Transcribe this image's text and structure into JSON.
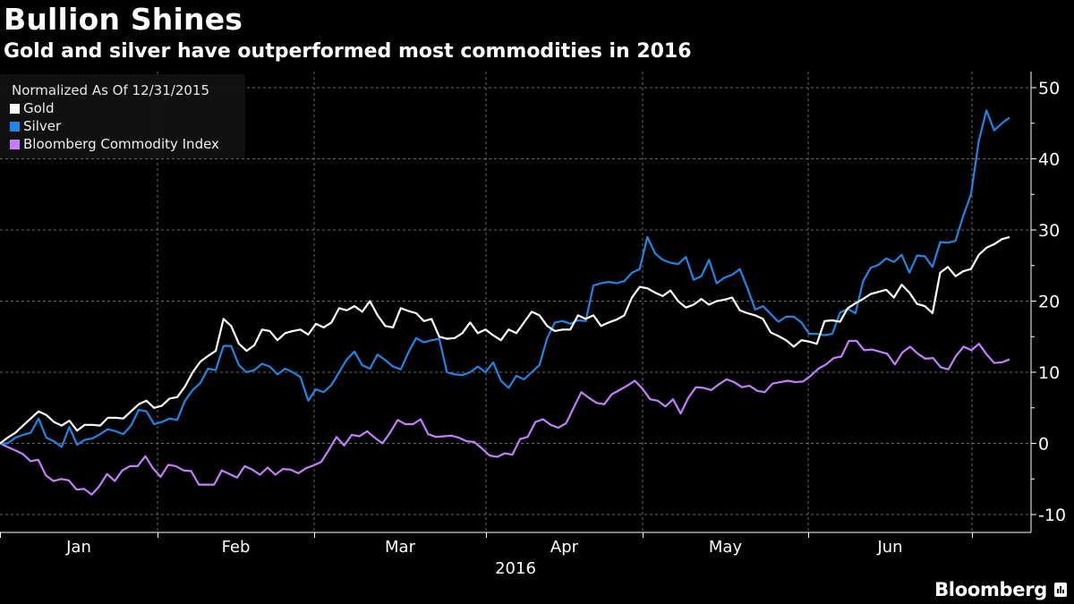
{
  "header": {
    "title": "Bullion Shines",
    "subtitle": "Gold and silver have outperformed most commodities in 2016"
  },
  "brand": {
    "name": "Bloomberg"
  },
  "chart_data": {
    "type": "line",
    "title": "Bullion Shines",
    "subtitle": "Gold and silver have outperformed most commodities in 2016",
    "legend_title": "Normalized As Of 12/31/2015",
    "legend_placement": "top-left",
    "xlabel": "2016",
    "ylabel": "",
    "x_ticks": [
      "Jan",
      "Feb",
      "Mar",
      "Apr",
      "May",
      "Jun"
    ],
    "x_note": "evenly spaced trading days from 12/31/2015 to early July 2016",
    "ylim": [
      -13,
      52
    ],
    "y_ticks": [
      -10,
      0,
      10,
      20,
      30,
      40,
      50
    ],
    "y_tick_labels": [
      "-10",
      "0",
      "10",
      "20",
      "30",
      "40",
      "50"
    ],
    "grid": true,
    "series": [
      {
        "name": "Gold",
        "color": "#ffffff",
        "values": [
          0,
          0.8,
          1.5,
          2.5,
          3.5,
          4.5,
          4,
          3,
          2.5,
          3.2,
          1.8,
          2.6,
          2.6,
          2.5,
          3.6,
          3.6,
          3.5,
          4.5,
          5.5,
          6,
          5,
          5.3,
          6.3,
          6.5,
          8,
          10,
          11.5,
          12.3,
          13,
          17.5,
          16.5,
          14,
          13,
          13.8,
          16,
          15.8,
          14.5,
          15.5,
          15.8,
          16,
          15.3,
          16.8,
          16.3,
          17,
          19,
          18.7,
          19.3,
          18.5,
          20,
          18,
          16.5,
          16.3,
          19,
          18.6,
          18.3,
          17.2,
          17.5,
          15,
          14.7,
          14.8,
          15.5,
          17,
          15.5,
          16,
          15.2,
          14.5,
          16,
          15.5,
          17,
          18.5,
          18,
          16.5,
          15.8,
          16,
          16,
          18,
          17.5,
          18,
          16.5,
          17,
          17.4,
          18,
          20.5,
          22,
          21.8,
          21.2,
          20.7,
          21.5,
          20,
          19.1,
          19.5,
          20.3,
          19.5,
          20,
          20.2,
          20.5,
          18.7,
          18.3,
          18,
          17.5,
          15.6,
          15.1,
          14.5,
          13.6,
          14.5,
          14.3,
          14,
          17.2,
          17.3,
          17.1,
          19,
          19.7,
          20.3,
          21,
          21.3,
          21.6,
          20.5,
          22.3,
          21.2,
          19.6,
          19.3,
          18.3,
          24,
          24.8,
          23.5,
          24.2,
          24.5,
          26.5,
          27.5,
          28,
          28.7,
          29
        ]
      },
      {
        "name": "Silver",
        "color": "#1f86e8",
        "values": [
          0,
          0,
          0.8,
          1.2,
          1.5,
          3.5,
          0.8,
          0.3,
          -0.5,
          2.3,
          -0.2,
          0.5,
          0.7,
          1.3,
          2,
          1.7,
          1.3,
          2.5,
          4.7,
          4.5,
          2.7,
          3,
          3.5,
          3.3,
          6,
          7.5,
          8.5,
          10.5,
          10.3,
          13.7,
          13.7,
          11,
          10,
          10.3,
          11.2,
          10.8,
          9.7,
          10.5,
          10,
          9.3,
          6,
          7.6,
          7.2,
          8.2,
          10,
          11.8,
          12.9,
          11,
          10.5,
          12.5,
          11.7,
          10.8,
          10.4,
          12.8,
          14.8,
          14.2,
          14.5,
          14.7,
          10,
          9.7,
          9.6,
          10,
          10.8,
          10,
          11.4,
          8.8,
          7.8,
          9.5,
          9,
          10,
          11,
          14.8,
          17,
          17.2,
          16.8,
          17.3,
          17.2,
          22.2,
          22.5,
          22.7,
          22.5,
          22.8,
          24,
          24.5,
          29,
          26.7,
          25.8,
          25.4,
          25.2,
          26.2,
          23,
          23.5,
          25.8,
          22.5,
          23.3,
          23.7,
          24.5,
          21.8,
          18.8,
          19.3,
          18.2,
          17.1,
          17.8,
          17.8,
          17,
          15.4,
          15.4,
          15.2,
          15.4,
          18.4,
          18.9,
          18.3,
          22.8,
          24.7,
          25.1,
          26,
          25.5,
          26.5,
          24,
          26.4,
          26.3,
          24.8,
          28.3,
          28.2,
          28.5,
          32,
          35,
          42.5,
          46.8,
          44,
          45,
          45.8
        ]
      },
      {
        "name": "Bloomberg Commodity Index",
        "color": "#c77dff",
        "values": [
          0,
          -0.5,
          -1,
          -1.5,
          -2.5,
          -2.3,
          -4.5,
          -5.3,
          -5,
          -5.2,
          -6.5,
          -6.4,
          -7.2,
          -6,
          -4.3,
          -5.3,
          -3.8,
          -3.2,
          -3.2,
          -1.8,
          -3.5,
          -4.7,
          -3,
          -3.2,
          -3.8,
          -3.9,
          -5.8,
          -5.8,
          -5.8,
          -3.8,
          -4.3,
          -4.8,
          -3.2,
          -3.7,
          -4.4,
          -3.4,
          -4.4,
          -3.6,
          -3.7,
          -4.2,
          -3.5,
          -3.1,
          -2.6,
          -0.9,
          0.9,
          -0.3,
          1.2,
          1,
          1.7,
          0.8,
          0,
          1.5,
          3.3,
          2.7,
          2.7,
          3.4,
          1.3,
          0.9,
          1,
          1.1,
          0.8,
          0.3,
          0.2,
          -0.7,
          -1.7,
          -1.9,
          -1.4,
          -1.6,
          0.6,
          0.9,
          3,
          3.4,
          2.6,
          2.2,
          2.8,
          5,
          7.2,
          6.4,
          5.7,
          5.5,
          6.9,
          7.5,
          8.1,
          8.8,
          7.7,
          6.2,
          6,
          5.2,
          6.2,
          4.2,
          6.4,
          7.9,
          7.8,
          7.5,
          8.3,
          9,
          8.6,
          7.9,
          8.1,
          7.4,
          7.2,
          8.4,
          8.6,
          8.8,
          8.6,
          8.7,
          9.5,
          10.5,
          11.1,
          12,
          12.2,
          14.4,
          14.4,
          13.1,
          13.2,
          12.9,
          12.6,
          11.1,
          12.8,
          13.6,
          12.6,
          11.9,
          12,
          10.7,
          10.4,
          12.3,
          13.6,
          13.1,
          14,
          12.5,
          11.3,
          11.4,
          11.8
        ]
      }
    ]
  }
}
